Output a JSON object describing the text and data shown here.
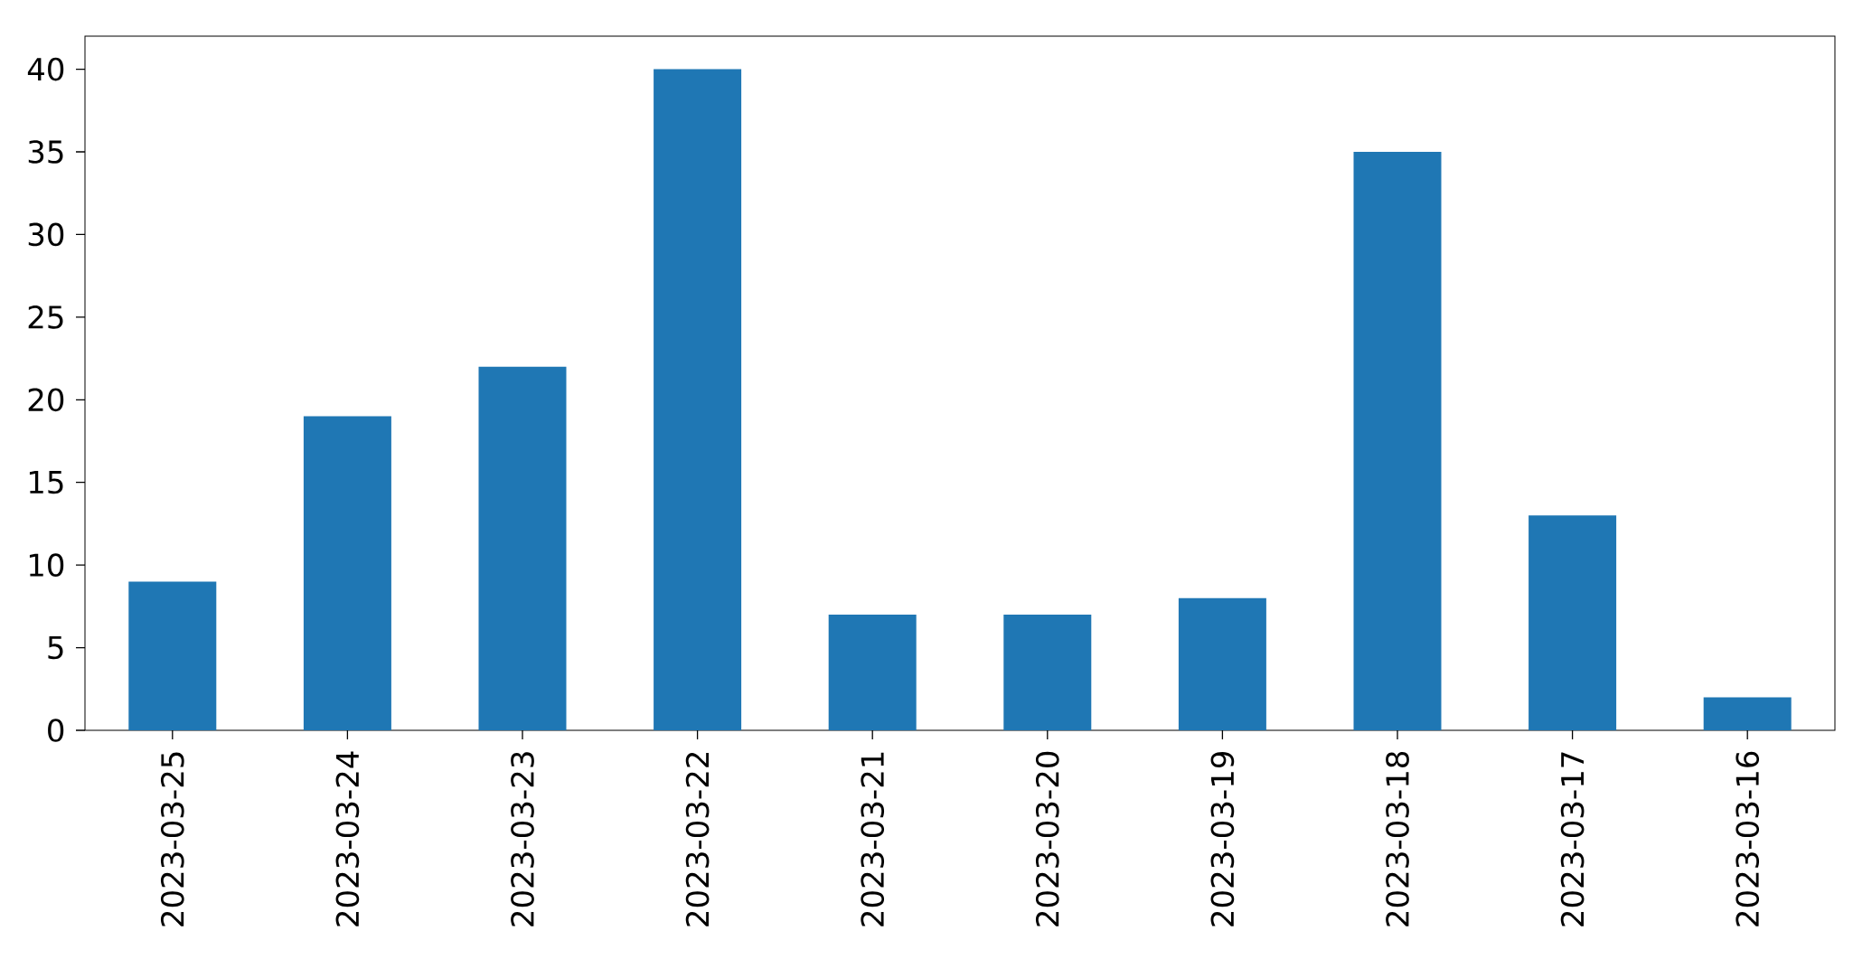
{
  "chart_data": {
    "type": "bar",
    "categories": [
      "2023-03-25",
      "2023-03-24",
      "2023-03-23",
      "2023-03-22",
      "2023-03-21",
      "2023-03-20",
      "2023-03-19",
      "2023-03-18",
      "2023-03-17",
      "2023-03-16"
    ],
    "values": [
      9,
      19,
      22,
      40,
      7,
      7,
      8,
      35,
      13,
      2
    ],
    "color": "#1f77b4",
    "ylim": [
      0,
      42
    ],
    "yticks": [
      0,
      5,
      10,
      15,
      20,
      25,
      30,
      35,
      40
    ]
  }
}
